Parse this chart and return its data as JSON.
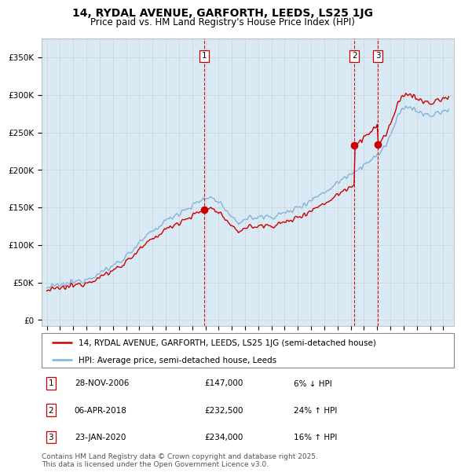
{
  "title": "14, RYDAL AVENUE, GARFORTH, LEEDS, LS25 1JG",
  "subtitle": "Price paid vs. HM Land Registry's House Price Index (HPI)",
  "yticks": [
    0,
    50000,
    100000,
    150000,
    200000,
    250000,
    300000,
    350000
  ],
  "ytick_labels": [
    "£0",
    "£50K",
    "£100K",
    "£150K",
    "£200K",
    "£250K",
    "£300K",
    "£350K"
  ],
  "ylim": [
    -8000,
    375000
  ],
  "sale_dates_year": [
    2006.91,
    2018.27,
    2020.06
  ],
  "sale_prices": [
    147000,
    232500,
    234000
  ],
  "sale_labels": [
    "1",
    "2",
    "3"
  ],
  "sale_info": [
    [
      "1",
      "28-NOV-2006",
      "£147,000",
      "6% ↓ HPI"
    ],
    [
      "2",
      "06-APR-2018",
      "£232,500",
      "24% ↑ HPI"
    ],
    [
      "3",
      "23-JAN-2020",
      "£234,000",
      "16% ↑ HPI"
    ]
  ],
  "legend_line1": "14, RYDAL AVENUE, GARFORTH, LEEDS, LS25 1JG (semi-detached house)",
  "legend_line2": "HPI: Average price, semi-detached house, Leeds",
  "footer": "Contains HM Land Registry data © Crown copyright and database right 2025.\nThis data is licensed under the Open Government Licence v3.0.",
  "hpi_color": "#7fb3d9",
  "hpi_fill_color": "#daeaf5",
  "price_color": "#cc0000",
  "sale_marker_color": "#cc0000",
  "vline_color": "#cc0000",
  "background_color": "#ffffff",
  "grid_color": "#cccccc",
  "title_fontsize": 10,
  "subtitle_fontsize": 8.5,
  "tick_fontsize": 7.5,
  "legend_fontsize": 7.5,
  "table_fontsize": 7.5,
  "footer_fontsize": 6.5
}
